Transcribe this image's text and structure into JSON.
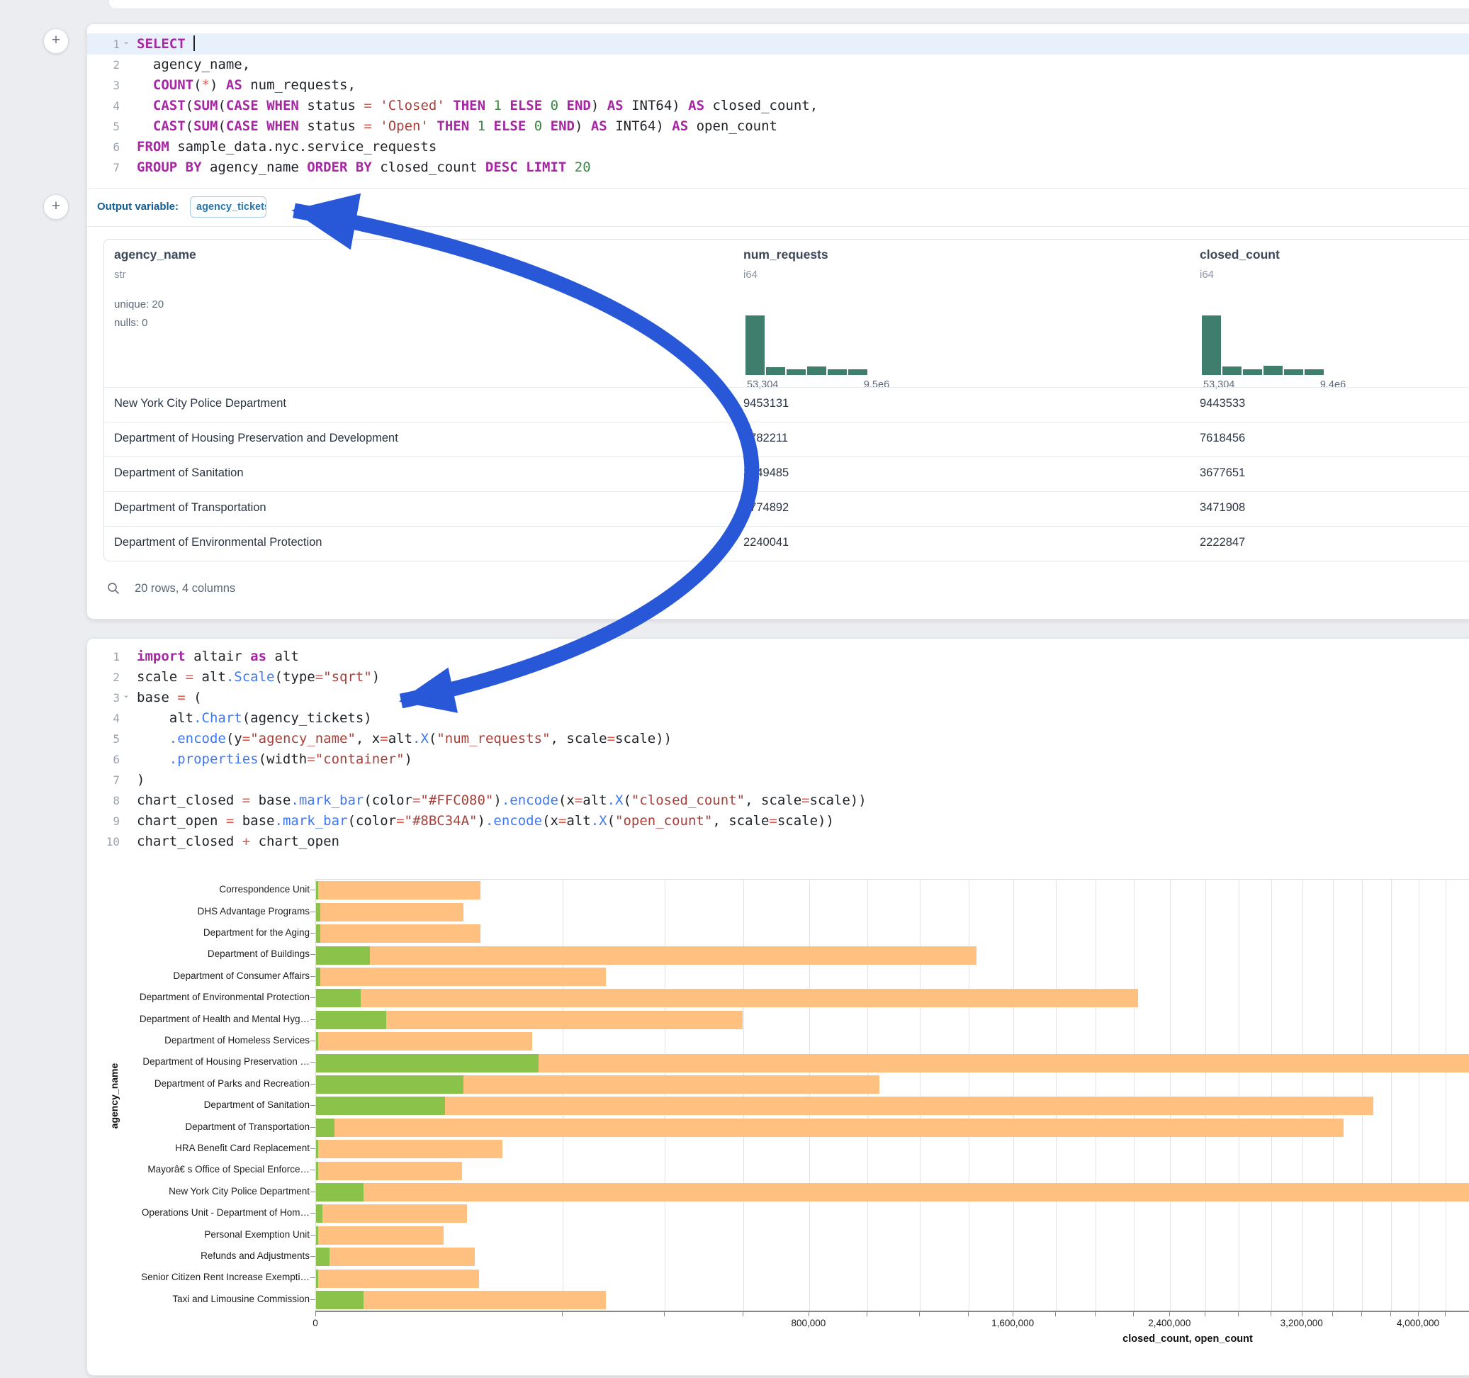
{
  "sql_cell": {
    "output_variable_label": "Output variable:",
    "output_variable_value": "agency_tickets",
    "lines": [
      {
        "n": "1",
        "fold": true,
        "hl": true,
        "toks": [
          [
            "kw",
            "SELECT"
          ],
          [
            "txt",
            " "
          ],
          [
            "caret",
            ""
          ]
        ]
      },
      {
        "n": "2",
        "toks": [
          [
            "txt",
            "  agency_name,"
          ]
        ]
      },
      {
        "n": "3",
        "toks": [
          [
            "txt",
            "  "
          ],
          [
            "kw",
            "COUNT"
          ],
          [
            "txt",
            "("
          ],
          [
            "op",
            "*"
          ],
          [
            "txt",
            ") "
          ],
          [
            "kw",
            "AS"
          ],
          [
            "txt",
            " num_requests,"
          ]
        ]
      },
      {
        "n": "4",
        "toks": [
          [
            "txt",
            "  "
          ],
          [
            "kw",
            "CAST"
          ],
          [
            "txt",
            "("
          ],
          [
            "kw",
            "SUM"
          ],
          [
            "txt",
            "("
          ],
          [
            "kw",
            "CASE"
          ],
          [
            "txt",
            " "
          ],
          [
            "kw",
            "WHEN"
          ],
          [
            "txt",
            " status "
          ],
          [
            "op",
            "="
          ],
          [
            "txt",
            " "
          ],
          [
            "str",
            "'Closed'"
          ],
          [
            "txt",
            " "
          ],
          [
            "kw",
            "THEN"
          ],
          [
            "txt",
            " "
          ],
          [
            "num",
            "1"
          ],
          [
            "txt",
            " "
          ],
          [
            "kw",
            "ELSE"
          ],
          [
            "txt",
            " "
          ],
          [
            "num",
            "0"
          ],
          [
            "txt",
            " "
          ],
          [
            "kw",
            "END"
          ],
          [
            "txt",
            ") "
          ],
          [
            "kw",
            "AS"
          ],
          [
            "txt",
            " INT64) "
          ],
          [
            "kw",
            "AS"
          ],
          [
            "txt",
            " closed_count,"
          ]
        ]
      },
      {
        "n": "5",
        "toks": [
          [
            "txt",
            "  "
          ],
          [
            "kw",
            "CAST"
          ],
          [
            "txt",
            "("
          ],
          [
            "kw",
            "SUM"
          ],
          [
            "txt",
            "("
          ],
          [
            "kw",
            "CASE"
          ],
          [
            "txt",
            " "
          ],
          [
            "kw",
            "WHEN"
          ],
          [
            "txt",
            " status "
          ],
          [
            "op",
            "="
          ],
          [
            "txt",
            " "
          ],
          [
            "str",
            "'Open'"
          ],
          [
            "txt",
            " "
          ],
          [
            "kw",
            "THEN"
          ],
          [
            "txt",
            " "
          ],
          [
            "num",
            "1"
          ],
          [
            "txt",
            " "
          ],
          [
            "kw",
            "ELSE"
          ],
          [
            "txt",
            " "
          ],
          [
            "num",
            "0"
          ],
          [
            "txt",
            " "
          ],
          [
            "kw",
            "END"
          ],
          [
            "txt",
            ") "
          ],
          [
            "kw",
            "AS"
          ],
          [
            "txt",
            " INT64) "
          ],
          [
            "kw",
            "AS"
          ],
          [
            "txt",
            " open_count"
          ]
        ]
      },
      {
        "n": "6",
        "toks": [
          [
            "kw",
            "FROM"
          ],
          [
            "txt",
            " sample_data.nyc.service_requests"
          ]
        ]
      },
      {
        "n": "7",
        "toks": [
          [
            "kw",
            "GROUP BY"
          ],
          [
            "txt",
            " agency_name "
          ],
          [
            "kw",
            "ORDER BY"
          ],
          [
            "txt",
            " closed_count "
          ],
          [
            "kw",
            "DESC"
          ],
          [
            "txt",
            " "
          ],
          [
            "kw",
            "LIMIT"
          ],
          [
            "txt",
            " "
          ],
          [
            "num",
            "20"
          ]
        ]
      }
    ]
  },
  "table": {
    "columns": [
      {
        "name": "agency_name",
        "type": "str",
        "x": 14,
        "stats": [
          "unique: 20",
          "nulls: 0"
        ]
      },
      {
        "name": "num_requests",
        "type": "i64",
        "x": 902,
        "hist": {
          "bins": [
            84,
            11,
            8,
            12,
            8,
            8
          ],
          "lo": "53,304",
          "hi": "9.5e6"
        }
      },
      {
        "name": "closed_count",
        "type": "i64",
        "x": 1546,
        "hist": {
          "bins": [
            84,
            12,
            8,
            13,
            8,
            8
          ],
          "lo": "53,304",
          "hi": "9.4e6"
        }
      }
    ],
    "rows": [
      [
        "New York City Police Department",
        "9453131",
        "9443533"
      ],
      [
        "Department of Housing Preservation and Development",
        "7782211",
        "7618456"
      ],
      [
        "Department of Sanitation",
        "3749485",
        "3677651"
      ],
      [
        "Department of Transportation",
        "3774892",
        "3471908"
      ],
      [
        "Department of Environmental Protection",
        "2240041",
        "2222847"
      ]
    ],
    "footer": "20 rows, 4 columns"
  },
  "python_cell": {
    "lines": [
      {
        "n": "1",
        "toks": [
          [
            "kw",
            "import"
          ],
          [
            "txt",
            " altair "
          ],
          [
            "kw",
            "as"
          ],
          [
            "txt",
            " alt"
          ]
        ]
      },
      {
        "n": "2",
        "toks": [
          [
            "txt",
            "scale "
          ],
          [
            "op",
            "="
          ],
          [
            "txt",
            " alt"
          ],
          [
            "fn",
            ".Scale"
          ],
          [
            "txt",
            "(type"
          ],
          [
            "op",
            "="
          ],
          [
            "str",
            "\"sqrt\""
          ],
          [
            "txt",
            ")"
          ]
        ]
      },
      {
        "n": "3",
        "fold": true,
        "toks": [
          [
            "txt",
            "base "
          ],
          [
            "op",
            "="
          ],
          [
            "txt",
            " ("
          ]
        ]
      },
      {
        "n": "4",
        "toks": [
          [
            "txt",
            "    alt"
          ],
          [
            "fn",
            ".Chart"
          ],
          [
            "txt",
            "(agency_tickets)"
          ]
        ]
      },
      {
        "n": "5",
        "toks": [
          [
            "txt",
            "    "
          ],
          [
            "fn",
            ".encode"
          ],
          [
            "txt",
            "(y"
          ],
          [
            "op",
            "="
          ],
          [
            "str",
            "\"agency_name\""
          ],
          [
            "txt",
            ", x"
          ],
          [
            "op",
            "="
          ],
          [
            "txt",
            "alt"
          ],
          [
            "fn",
            ".X"
          ],
          [
            "txt",
            "("
          ],
          [
            "str",
            "\"num_requests\""
          ],
          [
            "txt",
            ", scale"
          ],
          [
            "op",
            "="
          ],
          [
            "txt",
            "scale))"
          ]
        ]
      },
      {
        "n": "6",
        "toks": [
          [
            "txt",
            "    "
          ],
          [
            "fn",
            ".properties"
          ],
          [
            "txt",
            "(width"
          ],
          [
            "op",
            "="
          ],
          [
            "str",
            "\"container\""
          ],
          [
            "txt",
            ")"
          ]
        ]
      },
      {
        "n": "7",
        "toks": [
          [
            "txt",
            ")"
          ]
        ]
      },
      {
        "n": "8",
        "toks": [
          [
            "txt",
            "chart_closed "
          ],
          [
            "op",
            "="
          ],
          [
            "txt",
            " base"
          ],
          [
            "fn",
            ".mark_bar"
          ],
          [
            "txt",
            "(color"
          ],
          [
            "op",
            "="
          ],
          [
            "str",
            "\"#FFC080\""
          ],
          [
            "txt",
            ")"
          ],
          [
            "fn",
            ".encode"
          ],
          [
            "txt",
            "(x"
          ],
          [
            "op",
            "="
          ],
          [
            "txt",
            "alt"
          ],
          [
            "fn",
            ".X"
          ],
          [
            "txt",
            "("
          ],
          [
            "str",
            "\"closed_count\""
          ],
          [
            "txt",
            ", scale"
          ],
          [
            "op",
            "="
          ],
          [
            "txt",
            "scale))"
          ]
        ]
      },
      {
        "n": "9",
        "toks": [
          [
            "txt",
            "chart_open "
          ],
          [
            "op",
            "="
          ],
          [
            "txt",
            " base"
          ],
          [
            "fn",
            ".mark_bar"
          ],
          [
            "txt",
            "(color"
          ],
          [
            "op",
            "="
          ],
          [
            "str",
            "\"#8BC34A\""
          ],
          [
            "txt",
            ")"
          ],
          [
            "fn",
            ".encode"
          ],
          [
            "txt",
            "(x"
          ],
          [
            "op",
            "="
          ],
          [
            "txt",
            "alt"
          ],
          [
            "fn",
            ".X"
          ],
          [
            "txt",
            "("
          ],
          [
            "str",
            "\"open_count\""
          ],
          [
            "txt",
            ", scale"
          ],
          [
            "op",
            "="
          ],
          [
            "txt",
            "scale))"
          ]
        ]
      },
      {
        "n": "10",
        "toks": [
          [
            "txt",
            "chart_closed "
          ],
          [
            "op",
            "+"
          ],
          [
            "txt",
            " chart_open"
          ]
        ]
      }
    ]
  },
  "chart_data": {
    "type": "bar",
    "orientation": "horizontal",
    "x_scale": "sqrt",
    "title": "",
    "xlabel": "closed_count, open_count",
    "ylabel": "agency_name",
    "grid_step": 200000,
    "x_tick_values": [
      0,
      800000,
      1600000,
      2400000,
      3200000,
      4000000
    ],
    "x_tick_labels": [
      "0",
      "800,000",
      "1,600,000",
      "2,400,000",
      "3,200,000",
      "4,000,000"
    ],
    "categories": [
      "Correspondence Unit",
      "DHS Advantage Programs",
      "Department for the Aging",
      "Department of Buildings",
      "Department of Consumer Affairs",
      "Department of Environmental Protection",
      "Department of Health and Mental Hyg…",
      "Department of Homeless Services",
      "Department of Housing Preservation …",
      "Department of Parks and Recreation",
      "Department of Sanitation",
      "Department of Transportation",
      "HRA Benefit Card Replacement",
      "Mayorâ€ s Office of Special Enforce…",
      "New York City Police Department",
      "Operations Unit - Department of Hom…",
      "Personal Exemption Unit",
      "Refunds and Adjustments",
      "Senior Citizen Rent Increase Exempti…",
      "Taxi and Limousine Commission"
    ],
    "series": [
      {
        "name": "closed_count",
        "color": "#FFC080",
        "values": [
          89000,
          71500,
          89000,
          1435000,
          276500,
          2222847,
          598500,
          153600,
          7618456,
          1043000,
          3677651,
          3471908,
          114500,
          70100,
          9443533,
          75100,
          53500,
          82600,
          87300,
          276500
        ]
      },
      {
        "name": "open_count",
        "color": "#8BC34A",
        "values": [
          10,
          60,
          60,
          9480,
          60,
          6450,
          16270,
          10,
          162600,
          71500,
          54700,
          1100,
          10,
          10,
          7350,
          120,
          10,
          580,
          10,
          7350
        ]
      }
    ]
  },
  "annotation": {
    "arrow_color": "#2857d8"
  }
}
